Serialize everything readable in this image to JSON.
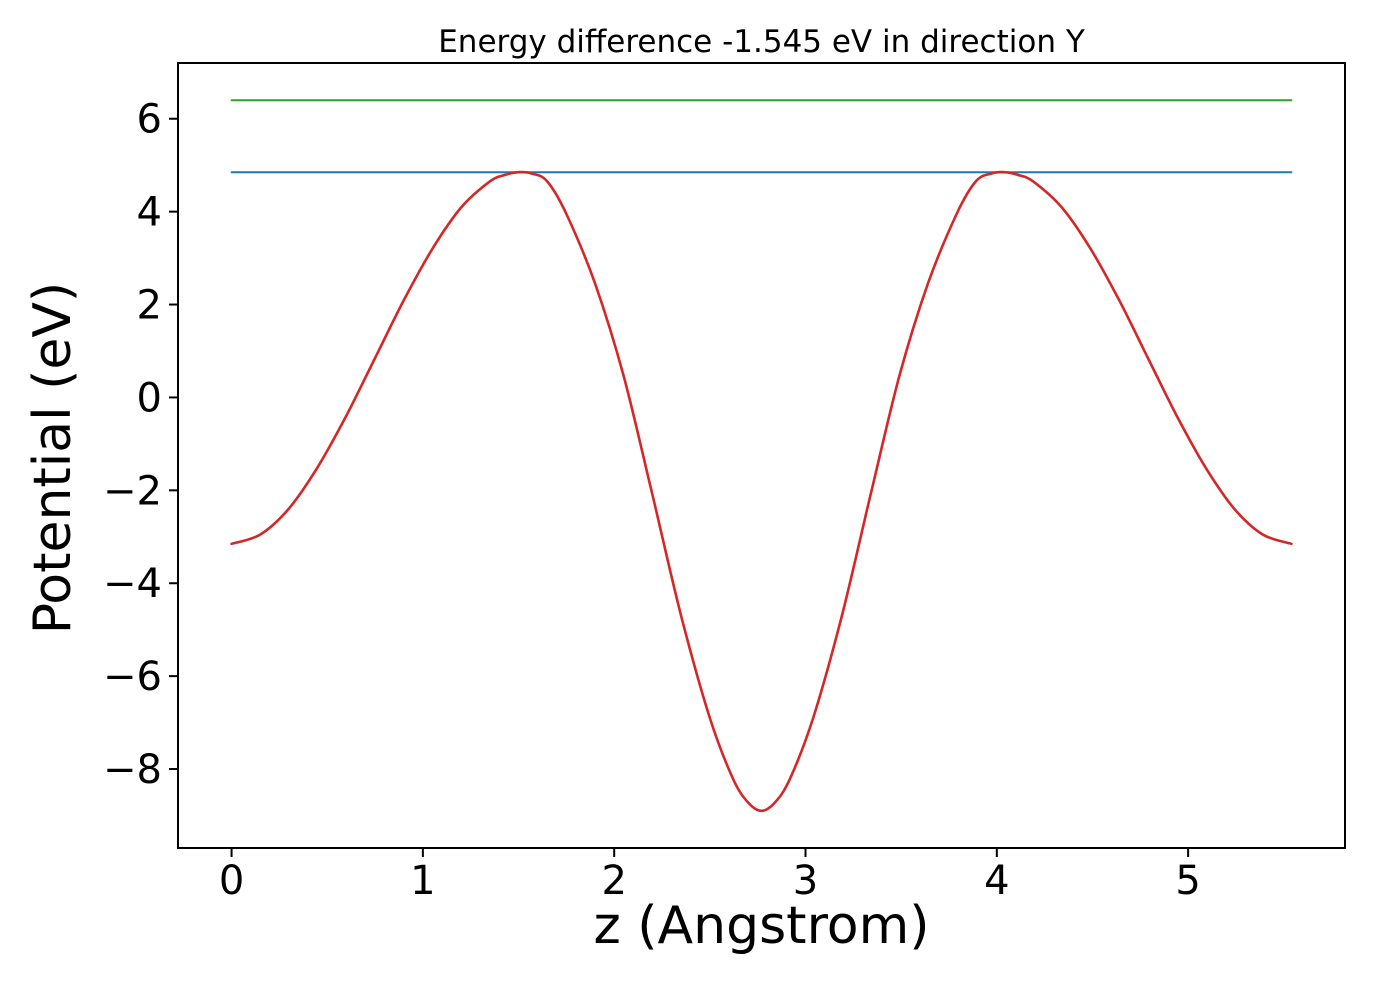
{
  "chart_data": {
    "type": "line",
    "title": "Energy difference -1.545 eV in direction Y",
    "xlabel": "z (Angstrom)",
    "ylabel": "Potential (eV)",
    "xlim": [
      -0.28,
      5.82
    ],
    "ylim": [
      -9.7,
      7.2
    ],
    "xticks": [
      0,
      1,
      2,
      3,
      4,
      5
    ],
    "yticks": [
      -8,
      -6,
      -4,
      -2,
      0,
      2,
      4,
      6
    ],
    "x_range": [
      0,
      5.54
    ],
    "grid": false,
    "legend": "none",
    "frame_color": "#000000",
    "series": [
      {
        "name": "reference-line-green",
        "kind": "hline",
        "value": 6.4,
        "color": "#2ca02c",
        "width": 2.0
      },
      {
        "name": "reference-line-blue",
        "kind": "hline",
        "value": 4.85,
        "color": "#1f77b4",
        "width": 2.0
      },
      {
        "name": "potential-curve",
        "kind": "curve",
        "color": "#d62728",
        "width": 2.6,
        "points": [
          [
            0.0,
            -3.15
          ],
          [
            0.15,
            -2.95
          ],
          [
            0.3,
            -2.39
          ],
          [
            0.45,
            -1.5
          ],
          [
            0.6,
            -0.39
          ],
          [
            0.75,
            0.85
          ],
          [
            0.9,
            2.09
          ],
          [
            1.05,
            3.2
          ],
          [
            1.2,
            4.09
          ],
          [
            1.35,
            4.65
          ],
          [
            1.43,
            4.79
          ],
          [
            1.5,
            4.85
          ],
          [
            1.57,
            4.82
          ],
          [
            1.65,
            4.65
          ],
          [
            1.75,
            3.95
          ],
          [
            1.9,
            2.45
          ],
          [
            2.05,
            0.45
          ],
          [
            2.2,
            -2.1
          ],
          [
            2.35,
            -4.7
          ],
          [
            2.5,
            -6.9
          ],
          [
            2.62,
            -8.2
          ],
          [
            2.7,
            -8.72
          ],
          [
            2.77,
            -8.9
          ],
          [
            2.84,
            -8.72
          ],
          [
            2.92,
            -8.2
          ],
          [
            3.04,
            -6.9
          ],
          [
            3.19,
            -4.7
          ],
          [
            3.34,
            -2.1
          ],
          [
            3.49,
            0.45
          ],
          [
            3.64,
            2.45
          ],
          [
            3.79,
            3.95
          ],
          [
            3.89,
            4.65
          ],
          [
            3.97,
            4.82
          ],
          [
            4.04,
            4.85
          ],
          [
            4.11,
            4.79
          ],
          [
            4.19,
            4.65
          ],
          [
            4.34,
            4.09
          ],
          [
            4.49,
            3.2
          ],
          [
            4.64,
            2.09
          ],
          [
            4.79,
            0.85
          ],
          [
            4.94,
            -0.39
          ],
          [
            5.09,
            -1.5
          ],
          [
            5.24,
            -2.39
          ],
          [
            5.39,
            -2.95
          ],
          [
            5.54,
            -3.15
          ]
        ]
      }
    ]
  }
}
